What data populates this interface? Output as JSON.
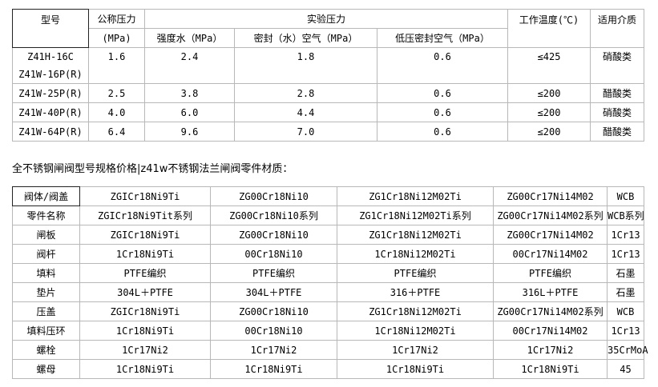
{
  "pressure_table": {
    "headers": {
      "model": "型号",
      "nominal_pressure": "公称压力",
      "nominal_unit": "(MPa)",
      "test_pressure": "实验压力",
      "strength_water": "强度水（MPa）",
      "seal_water_air": "密封（水）空气（MPa）",
      "low_pressure_seal_air": "低压密封空气（MPa）",
      "working_temp": "工作温度(℃)",
      "medium": "适用介质"
    },
    "rows": [
      {
        "model": [
          "Z41H-16C",
          "Z41W-16P(R)"
        ],
        "nominal": "1.6",
        "strength": "2.4",
        "seal": "1.8",
        "low": "0.6",
        "temp": "≤425",
        "medium": "硝酸类"
      },
      {
        "model": [
          "Z41W-25P(R)"
        ],
        "nominal": "2.5",
        "strength": "3.8",
        "seal": "2.8",
        "low": "0.6",
        "temp": "≤200",
        "medium": "醋酸类"
      },
      {
        "model": [
          "Z41W-40P(R)"
        ],
        "nominal": "4.0",
        "strength": "6.0",
        "seal": "4.4",
        "low": "0.6",
        "temp": "≤200",
        "medium": "硝酸类"
      },
      {
        "model": [
          "Z41W-64P(R)"
        ],
        "nominal": "6.4",
        "strength": "9.6",
        "seal": "7.0",
        "low": "0.6",
        "temp": "≤200",
        "medium": "醋酸类"
      }
    ]
  },
  "caption": "全不锈钢闸阀型号规格价格|z41w不锈钢法兰闸阀零件材质：",
  "material_table": {
    "rows": [
      [
        "阀体/阀盖",
        "ZGICr18Ni9Ti",
        "ZG00Cr18Ni10",
        "ZG1Cr18Ni12M02Ti",
        "ZG00Cr17Ni14M02",
        "WCB"
      ],
      [
        "零件名称",
        "ZGICr18Ni9Tit系列",
        "ZG00Cr18Ni10系列",
        "ZG1Cr18Ni12M02Ti系列",
        "ZG00Cr17Ni14M02系列",
        "WCB系列"
      ],
      [
        "闸板",
        "ZGICr18Ni9Ti",
        "ZG00Cr18Ni10",
        "ZG1Cr18Ni12M02Ti",
        "ZG00Cr17Ni14M02",
        "1Cr13"
      ],
      [
        "阀杆",
        "1Cr18Ni9Ti",
        "00Cr18Ni10",
        "1Cr18Ni12M02Ti",
        "00Cr17Ni14M02",
        "1Cr13"
      ],
      [
        "填料",
        "PTFE编织",
        "PTFE编织",
        "PTFE编织",
        "PTFE编织",
        "石墨"
      ],
      [
        "垫片",
        "304L＋PTFE",
        "304L＋PTFE",
        "316＋PTFE",
        "316L＋PTFE",
        "石墨"
      ],
      [
        "压盖",
        "ZGICr18Ni9Ti",
        "ZG00Cr18Ni10",
        "ZG1Cr18Ni12M02Ti",
        "ZG00Cr17Ni14M02系列",
        "WCB"
      ],
      [
        "填料压环",
        "1Cr18Ni9Ti",
        "00Cr18Ni10",
        "1Cr18Ni12M02Ti",
        "00Cr17Ni14M02",
        "1Cr13"
      ],
      [
        "螺栓",
        "1Cr17Ni2",
        "1Cr17Ni2",
        "1Cr17Ni2",
        "1Cr17Ni2",
        "35CrMoA"
      ],
      [
        "螺母",
        "1Cr18Ni9Ti",
        "1Cr18Ni9Ti",
        "1Cr18Ni9Ti",
        "1Cr18Ni9Ti",
        "45"
      ]
    ]
  }
}
